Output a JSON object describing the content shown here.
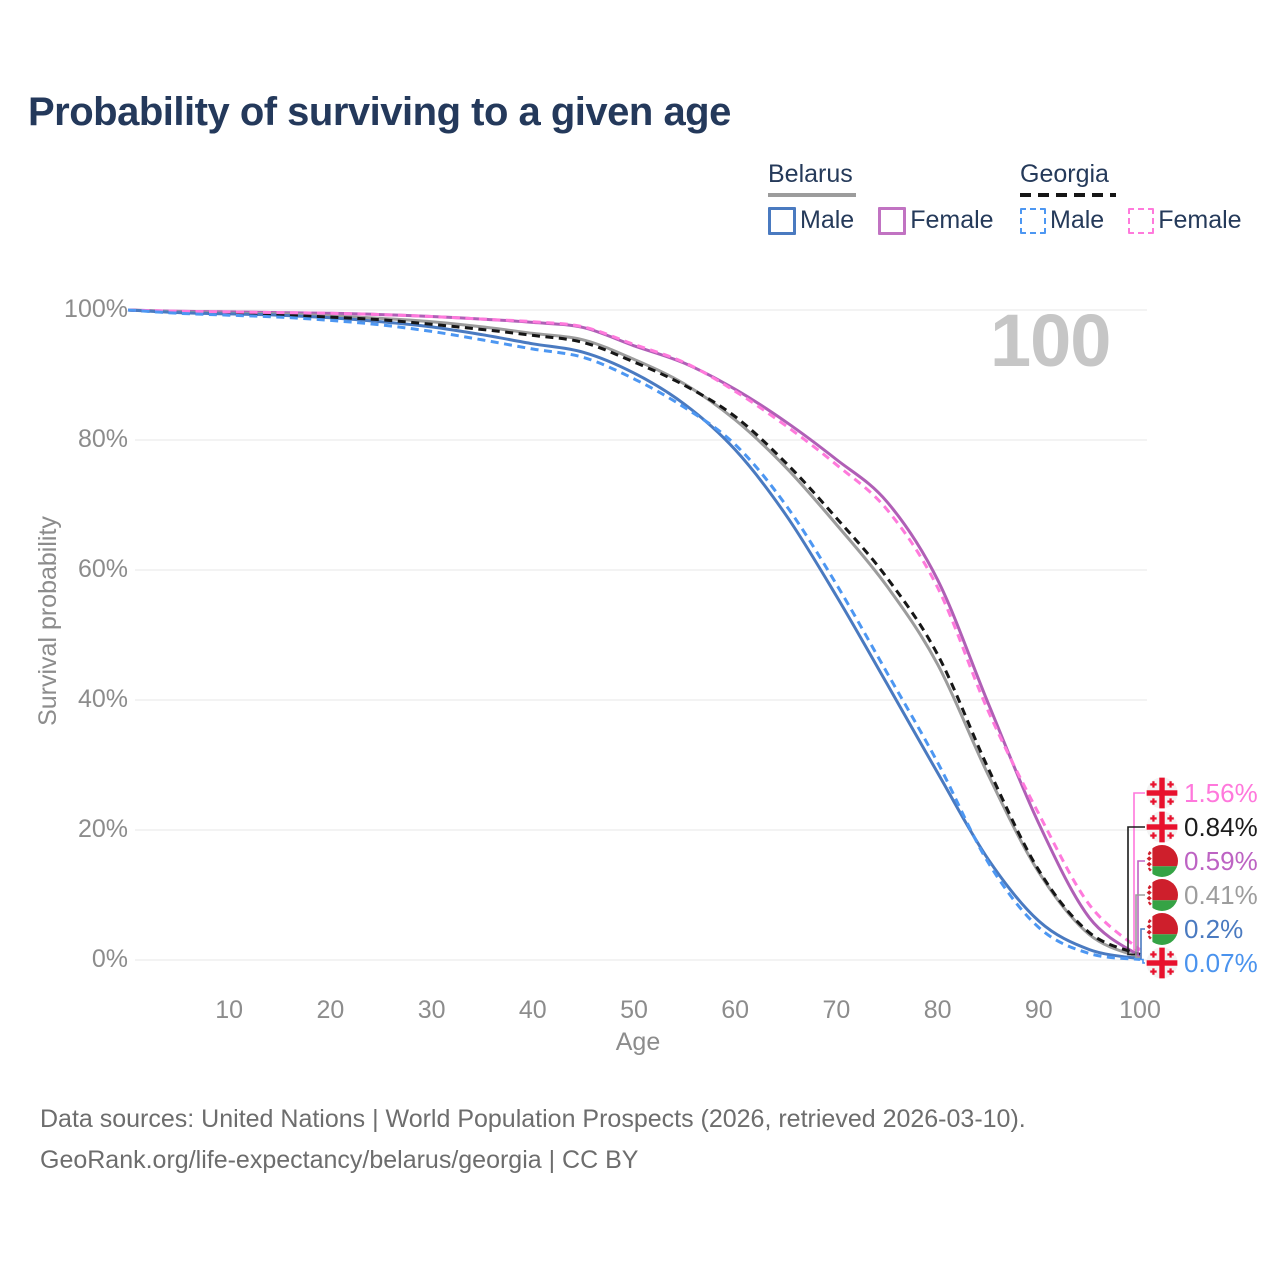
{
  "title": "Probability of surviving to a given age",
  "watermark": "100",
  "legend": {
    "groups": [
      {
        "name": "Belarus",
        "rule_style": "solid",
        "rule_color": "#9c9c9c",
        "items": [
          {
            "label": "Male",
            "color": "#4a7ac0",
            "dashed": false
          },
          {
            "label": "Female",
            "color": "#c173c2",
            "dashed": false
          }
        ]
      },
      {
        "name": "Georgia",
        "rule_style": "dashed",
        "rule_color": "#161616",
        "items": [
          {
            "label": "Male",
            "color": "#4d97f2",
            "dashed": true
          },
          {
            "label": "Female",
            "color": "#ff7adc",
            "dashed": true
          }
        ]
      }
    ]
  },
  "chart_data": {
    "type": "line",
    "title": "Probability of surviving to a given age",
    "xlabel": "Age",
    "ylabel": "Survival probability",
    "xlim": [
      0,
      100
    ],
    "ylim": [
      0,
      100
    ],
    "grid": "horizontal",
    "x_ticks": [
      10,
      20,
      30,
      40,
      50,
      60,
      70,
      80,
      90,
      100
    ],
    "y_ticks": [
      0,
      20,
      40,
      60,
      80,
      100
    ],
    "y_tick_labels": [
      "0%",
      "20%",
      "40%",
      "60%",
      "80%",
      "100%"
    ],
    "x": [
      0,
      5,
      10,
      15,
      20,
      25,
      30,
      35,
      40,
      45,
      50,
      55,
      60,
      65,
      70,
      75,
      80,
      85,
      90,
      95,
      100
    ],
    "series": [
      {
        "name": "Belarus Female",
        "country": "Belarus",
        "sex": "Female",
        "color": "#b05fb6",
        "dashed": false,
        "values": [
          100,
          99.8,
          99.7,
          99.6,
          99.5,
          99.3,
          99.0,
          98.6,
          98.1,
          97.3,
          94.5,
          91.8,
          87.8,
          82.8,
          77.0,
          70.5,
          58.5,
          39.5,
          21.0,
          6.5,
          0.59
        ],
        "end_value": 0.59
      },
      {
        "name": "Belarus Total",
        "country": "Belarus",
        "sex": "Both",
        "color": "#9c9c9c",
        "dashed": false,
        "values": [
          100,
          99.7,
          99.5,
          99.4,
          99.1,
          98.7,
          98.2,
          97.4,
          96.4,
          95.4,
          92.4,
          88.6,
          83.1,
          75.8,
          67.0,
          57.5,
          45.5,
          28.5,
          13.5,
          3.9,
          0.41
        ],
        "end_value": 0.41
      },
      {
        "name": "Belarus Male",
        "country": "Belarus",
        "sex": "Male",
        "color": "#4a7ac0",
        "dashed": false,
        "values": [
          100,
          99.6,
          99.4,
          99.2,
          98.8,
          98.2,
          97.4,
          96.2,
          94.8,
          93.5,
          90.3,
          85.5,
          78.5,
          68.5,
          56.0,
          42.5,
          28.8,
          15.5,
          6.0,
          1.6,
          0.2
        ],
        "end_value": 0.2
      },
      {
        "name": "Georgia Total",
        "country": "Georgia",
        "sex": "Both",
        "color": "#161616",
        "dashed": true,
        "values": [
          100,
          99.6,
          99.4,
          99.2,
          98.9,
          98.5,
          97.8,
          97.0,
          96.1,
          95.0,
          92.0,
          88.4,
          83.6,
          76.5,
          68.0,
          58.8,
          47.0,
          29.5,
          13.8,
          4.2,
          0.84
        ],
        "end_value": 0.84
      },
      {
        "name": "Georgia Female",
        "country": "Georgia",
        "sex": "Female",
        "color": "#ff7adc",
        "dashed": true,
        "values": [
          100,
          99.8,
          99.7,
          99.6,
          99.5,
          99.3,
          99.0,
          98.6,
          98.2,
          97.4,
          94.7,
          91.9,
          87.5,
          82.2,
          76.2,
          69.3,
          57.3,
          38.3,
          22.5,
          8.5,
          1.56
        ],
        "end_value": 1.56
      },
      {
        "name": "Georgia Male",
        "country": "Georgia",
        "sex": "Male",
        "color": "#4d97f2",
        "dashed": true,
        "values": [
          100,
          99.5,
          99.2,
          98.9,
          98.4,
          97.7,
          96.7,
          95.4,
          94.0,
          92.7,
          89.4,
          85.0,
          79.3,
          70.0,
          57.8,
          44.2,
          30.4,
          15.0,
          5.0,
          1.0,
          0.07
        ],
        "end_value": 0.07
      }
    ],
    "end_labels": [
      {
        "text": "1.56%",
        "series": "Georgia Female",
        "color": "#ff78dc",
        "flag": "georgia"
      },
      {
        "text": "0.84%",
        "series": "Georgia Total",
        "color": "#1c1c1c",
        "flag": "georgia"
      },
      {
        "text": "0.59%",
        "series": "Belarus Female",
        "color": "#bd63c3",
        "flag": "belarus"
      },
      {
        "text": "0.41%",
        "series": "Belarus Total",
        "color": "#9d9d9d",
        "flag": "belarus"
      },
      {
        "text": "0.2%",
        "series": "Belarus Male",
        "color": "#4a7ac0",
        "flag": "belarus"
      },
      {
        "text": "0.07%",
        "series": "Georgia Male",
        "color": "#4a93ee",
        "flag": "georgia"
      }
    ],
    "legend_position": "top-right"
  },
  "footer": {
    "line1": "Data sources: United Nations | World Population Prospects (2026, retrieved 2026-03-10).",
    "line2": "GeoRank.org/life-expectancy/belarus/georgia | CC BY"
  }
}
